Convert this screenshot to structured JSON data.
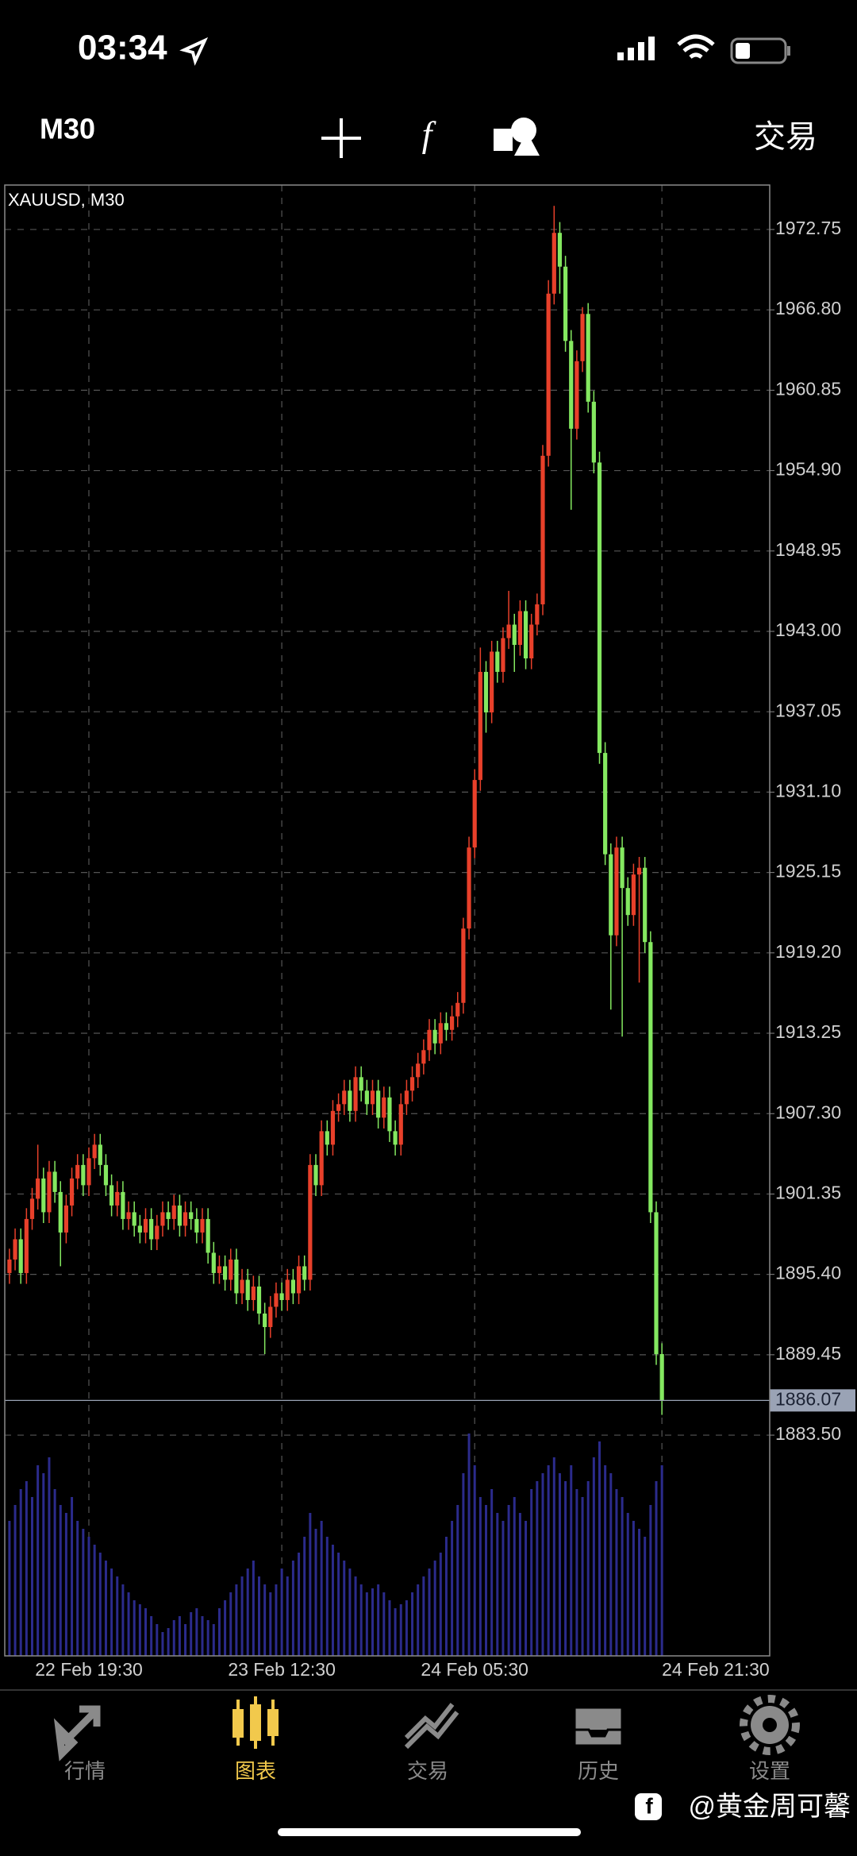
{
  "status_bar": {
    "time": "03:34"
  },
  "toolbar": {
    "timeframe": "M30",
    "trade": "交易"
  },
  "tabs": [
    "行情",
    "图表",
    "交易",
    "历史",
    "设置"
  ],
  "active_tab": 1,
  "watermark": "@黄金周可馨",
  "chart_data": {
    "type": "candlestick",
    "title": "XAUUSD, M30",
    "up_color": "#e8402a",
    "down_color": "#84e860",
    "volume_color": "#2b2b8c",
    "ylim": [
      1867.16,
      1976.04
    ],
    "yticks": [
      1972.75,
      {
        "value": 1966.8,
        "label": "1966.80"
      },
      1960.85,
      {
        "value": 1954.9,
        "label": "1954.90"
      },
      1948.95,
      {
        "value": 1943,
        "label": "1943.00"
      },
      1937.05,
      {
        "value": 1931.1,
        "label": "1931.10"
      },
      1925.15,
      {
        "value": 1919.2,
        "label": "1919.20"
      },
      1913.25,
      {
        "value": 1907.3,
        "label": "1907.30"
      },
      1901.35,
      {
        "value": 1895.4,
        "label": "1895.40"
      },
      1889.45,
      {
        "value": 1883.5,
        "label": "1883.50"
      }
    ],
    "grid": true,
    "last_price": 1886.07,
    "categories": [
      null,
      null,
      null,
      null,
      null,
      null,
      null,
      null,
      null,
      null,
      null,
      null,
      null,
      null,
      "22 Feb 19:30",
      null,
      null,
      null,
      null,
      null,
      null,
      null,
      null,
      null,
      null,
      null,
      null,
      null,
      null,
      null,
      null,
      null,
      null,
      null,
      null,
      null,
      null,
      null,
      null,
      null,
      null,
      null,
      null,
      null,
      null,
      null,
      null,
      null,
      "23 Feb 12:30",
      null,
      null,
      null,
      null,
      null,
      null,
      null,
      null,
      null,
      null,
      null,
      null,
      null,
      null,
      null,
      null,
      null,
      null,
      null,
      null,
      null,
      null,
      null,
      null,
      null,
      null,
      null,
      null,
      null,
      null,
      null,
      null,
      null,
      "24 Feb 05:30",
      null,
      null,
      null,
      null,
      null,
      null,
      null,
      null,
      null,
      null,
      null,
      null,
      null,
      null,
      null,
      null,
      null,
      null,
      null,
      null,
      null,
      null,
      null,
      null,
      null,
      null,
      null,
      null,
      null,
      null,
      null,
      null,
      "24 Feb 21:30"
    ],
    "ohlc": [
      [
        1895.5,
        1897.3,
        1894.7,
        1896.5
      ],
      [
        1896.5,
        1898.8,
        1895.7,
        1898.0
      ],
      [
        1898.0,
        1898.8,
        1894.7,
        1895.5
      ],
      [
        1895.5,
        1900.3,
        1894.7,
        1899.5
      ],
      [
        1899.5,
        1901.8,
        1898.7,
        1901.0
      ],
      [
        1901.0,
        1905.0,
        1900.2,
        1902.5
      ],
      [
        1902.5,
        1903.3,
        1899.2,
        1900.0
      ],
      [
        1900.0,
        1903.8,
        1899.2,
        1903.0
      ],
      [
        1903.0,
        1903.8,
        1900.7,
        1901.5
      ],
      [
        1901.5,
        1902.3,
        1896.0,
        1898.5
      ],
      [
        1898.5,
        1901.3,
        1897.7,
        1900.5
      ],
      [
        1900.5,
        1903.3,
        1899.7,
        1902.5
      ],
      [
        1902.5,
        1904.3,
        1901.7,
        1903.5
      ],
      [
        1903.5,
        1904.3,
        1901.2,
        1902.0
      ],
      [
        1902.0,
        1904.8,
        1901.2,
        1904.0
      ],
      [
        1904.0,
        1905.8,
        1903.2,
        1905.0
      ],
      [
        1905.0,
        1905.8,
        1902.7,
        1903.5
      ],
      [
        1903.5,
        1904.3,
        1901.2,
        1902.0
      ],
      [
        1902.0,
        1902.8,
        1899.7,
        1900.5
      ],
      [
        1900.5,
        1902.3,
        1899.7,
        1901.5
      ],
      [
        1901.5,
        1902.3,
        1898.7,
        1899.5
      ],
      [
        1899.5,
        1900.8,
        1898.7,
        1900.0
      ],
      [
        1900.0,
        1900.8,
        1898.2,
        1899.0
      ],
      [
        1899.0,
        1899.8,
        1897.7,
        1898.5
      ],
      [
        1898.5,
        1900.3,
        1897.7,
        1899.5
      ],
      [
        1899.5,
        1900.3,
        1897.2,
        1898.0
      ],
      [
        1898.0,
        1899.8,
        1897.2,
        1899.0
      ],
      [
        1899.0,
        1900.8,
        1898.2,
        1900.0
      ],
      [
        1900.0,
        1900.8,
        1898.7,
        1899.5
      ],
      [
        1899.5,
        1901.3,
        1898.7,
        1900.5
      ],
      [
        1900.5,
        1901.3,
        1898.2,
        1899.0
      ],
      [
        1899.0,
        1900.8,
        1898.2,
        1900.0
      ],
      [
        1900.0,
        1900.8,
        1898.7,
        1899.5
      ],
      [
        1899.5,
        1900.3,
        1897.7,
        1898.5
      ],
      [
        1898.5,
        1900.3,
        1897.7,
        1899.5
      ],
      [
        1899.5,
        1900.3,
        1896.2,
        1897.0
      ],
      [
        1897.0,
        1897.8,
        1894.7,
        1895.5
      ],
      [
        1895.5,
        1896.8,
        1894.7,
        1896.0
      ],
      [
        1896.0,
        1896.8,
        1894.2,
        1895.0
      ],
      [
        1895.0,
        1897.3,
        1894.2,
        1896.5
      ],
      [
        1896.5,
        1897.3,
        1893.2,
        1894.0
      ],
      [
        1894.0,
        1895.8,
        1893.2,
        1895.0
      ],
      [
        1895.0,
        1895.8,
        1892.7,
        1893.5
      ],
      [
        1893.5,
        1895.3,
        1892.7,
        1894.5
      ],
      [
        1894.5,
        1895.3,
        1891.7,
        1892.5
      ],
      [
        1892.5,
        1893.3,
        1889.5,
        1891.5
      ],
      [
        1891.5,
        1893.8,
        1890.7,
        1893.0
      ],
      [
        1893.0,
        1894.8,
        1892.2,
        1894.0
      ],
      [
        1894.0,
        1894.8,
        1892.7,
        1893.5
      ],
      [
        1893.5,
        1895.8,
        1892.7,
        1895.0
      ],
      [
        1895.0,
        1895.8,
        1893.2,
        1894.0
      ],
      [
        1894.0,
        1896.8,
        1893.2,
        1896.0
      ],
      [
        1896.0,
        1896.8,
        1894.2,
        1895.0
      ],
      [
        1895.0,
        1904.3,
        1894.2,
        1903.5
      ],
      [
        1903.5,
        1904.3,
        1901.2,
        1902.0
      ],
      [
        1902.0,
        1906.8,
        1901.2,
        1906.0
      ],
      [
        1906.0,
        1906.8,
        1904.2,
        1905.0
      ],
      [
        1905.0,
        1908.3,
        1904.2,
        1907.5
      ],
      [
        1907.5,
        1908.8,
        1906.7,
        1908.0
      ],
      [
        1908.0,
        1909.8,
        1907.2,
        1909.0
      ],
      [
        1909.0,
        1909.8,
        1906.7,
        1907.5
      ],
      [
        1907.5,
        1910.8,
        1906.7,
        1910.0
      ],
      [
        1910.0,
        1910.8,
        1908.2,
        1909.0
      ],
      [
        1909.0,
        1909.8,
        1907.2,
        1908.0
      ],
      [
        1908.0,
        1909.8,
        1907.2,
        1909.0
      ],
      [
        1909.0,
        1909.8,
        1906.2,
        1907.0
      ],
      [
        1907.0,
        1909.3,
        1906.2,
        1908.5
      ],
      [
        1908.5,
        1909.3,
        1905.2,
        1906.0
      ],
      [
        1906.0,
        1906.8,
        1904.2,
        1905.0
      ],
      [
        1905.0,
        1908.8,
        1904.2,
        1908.0
      ],
      [
        1908.0,
        1909.8,
        1907.2,
        1909.0
      ],
      [
        1909.0,
        1910.8,
        1908.2,
        1910.0
      ],
      [
        1910.0,
        1911.8,
        1909.2,
        1911.0
      ],
      [
        1911.0,
        1912.8,
        1910.2,
        1912.0
      ],
      [
        1912.0,
        1914.3,
        1911.2,
        1913.5
      ],
      [
        1913.5,
        1914.3,
        1911.7,
        1912.5
      ],
      [
        1912.5,
        1914.8,
        1911.7,
        1914.0
      ],
      [
        1914.0,
        1914.8,
        1912.7,
        1913.5
      ],
      [
        1913.5,
        1915.3,
        1912.7,
        1914.5
      ],
      [
        1914.5,
        1916.3,
        1913.7,
        1915.5
      ],
      [
        1915.5,
        1921.8,
        1914.7,
        1921.0
      ],
      [
        1921.0,
        1927.8,
        1920.2,
        1927.0
      ],
      [
        1927.0,
        1932.8,
        1926.2,
        1932.0
      ],
      [
        1932.0,
        1941.8,
        1931.2,
        1940.0
      ],
      [
        1940.0,
        1940.8,
        1935.5,
        1937.0
      ],
      [
        1937.0,
        1942.3,
        1936.2,
        1941.5
      ],
      [
        1941.5,
        1942.3,
        1939.2,
        1940.0
      ],
      [
        1940.0,
        1943.3,
        1939.2,
        1942.5
      ],
      [
        1942.5,
        1946.0,
        1941.7,
        1943.5
      ],
      [
        1943.5,
        1944.3,
        1940.0,
        1942.0
      ],
      [
        1942.0,
        1945.3,
        1941.2,
        1944.5
      ],
      [
        1944.5,
        1945.3,
        1940.2,
        1941.0
      ],
      [
        1941.0,
        1944.3,
        1940.2,
        1943.5
      ],
      [
        1943.5,
        1945.8,
        1942.7,
        1945.0
      ],
      [
        1945.0,
        1956.8,
        1944.2,
        1956.0
      ],
      [
        1956.0,
        1969.0,
        1955.2,
        1968.0
      ],
      [
        1968.0,
        1974.5,
        1967.2,
        1972.5
      ],
      [
        1972.5,
        1973.3,
        1968.0,
        1970.0
      ],
      [
        1970.0,
        1970.8,
        1963.7,
        1964.5
      ],
      [
        1964.5,
        1965.3,
        1952.0,
        1958.0
      ],
      [
        1958.0,
        1963.8,
        1957.2,
        1963.0
      ],
      [
        1963.0,
        1967.0,
        1962.2,
        1966.5
      ],
      [
        1966.5,
        1967.3,
        1959.2,
        1960.0
      ],
      [
        1960.0,
        1960.8,
        1954.7,
        1955.5
      ],
      [
        1955.5,
        1956.3,
        1933.2,
        1934.0
      ],
      [
        1934.0,
        1934.8,
        1925.7,
        1926.5
      ],
      [
        1926.5,
        1927.3,
        1915.0,
        1920.5
      ],
      [
        1920.5,
        1927.8,
        1919.7,
        1927.0
      ],
      [
        1927.0,
        1927.8,
        1913.0,
        1924.0
      ],
      [
        1924.0,
        1924.8,
        1921.2,
        1922.0
      ],
      [
        1922.0,
        1925.8,
        1921.2,
        1925.0
      ],
      [
        1925.0,
        1926.3,
        1917.0,
        1925.5
      ],
      [
        1925.5,
        1926.3,
        1919.2,
        1920.0
      ],
      [
        1920.0,
        1920.8,
        1899.2,
        1900.0
      ],
      [
        1900.0,
        1900.8,
        1888.7,
        1889.5
      ],
      [
        1889.5,
        1890.3,
        1885.0,
        1886.07
      ]
    ],
    "volume": [
      1700,
      1900,
      2100,
      2200,
      2000,
      2400,
      2300,
      2500,
      2100,
      1900,
      1800,
      2000,
      1700,
      1600,
      1500,
      1400,
      1300,
      1200,
      1100,
      1000,
      900,
      800,
      700,
      650,
      600,
      500,
      400,
      300,
      350,
      450,
      500,
      400,
      550,
      600,
      500,
      450,
      400,
      600,
      700,
      800,
      900,
      1000,
      1100,
      1200,
      1000,
      900,
      800,
      900,
      1100,
      1000,
      1200,
      1300,
      1500,
      1800,
      1600,
      1700,
      1500,
      1400,
      1300,
      1200,
      1100,
      1000,
      900,
      800,
      850,
      900,
      800,
      700,
      600,
      650,
      700,
      800,
      900,
      1000,
      1100,
      1200,
      1300,
      1500,
      1700,
      1900,
      2300,
      2800,
      2400,
      2000,
      1900,
      2100,
      1800,
      1700,
      1900,
      2000,
      1800,
      1700,
      2100,
      2200,
      2300,
      2400,
      2500,
      2300,
      2200,
      2400,
      2100,
      2000,
      2200,
      2500,
      2700,
      2400,
      2300,
      2100,
      2000,
      1800,
      1700,
      1600,
      1500,
      1900,
      2200,
      2400
    ]
  }
}
